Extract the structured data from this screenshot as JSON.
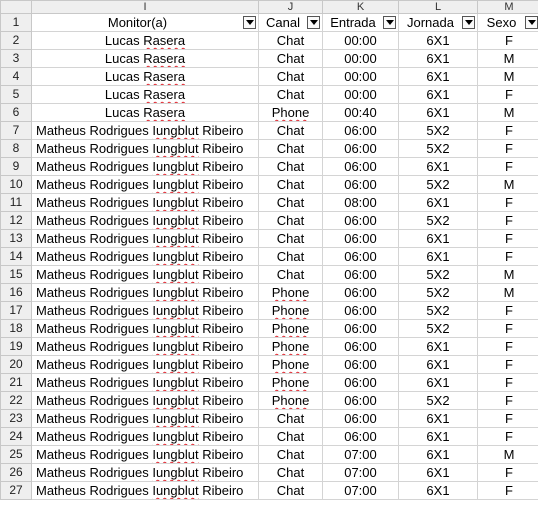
{
  "columns": [
    "I",
    "J",
    "K",
    "L",
    "M"
  ],
  "headers": {
    "row_number": "1",
    "monitor": "Monitor(a)",
    "canal": "Canal",
    "entrada": "Entrada",
    "jornada": "Jornada",
    "sexo": "Sexo"
  },
  "rows": [
    {
      "n": "2",
      "monitor": "Lucas Rasera",
      "canal": "Chat",
      "entrada": "00:00",
      "jornada": "6X1",
      "sexo": "F"
    },
    {
      "n": "3",
      "monitor": "Lucas Rasera",
      "canal": "Chat",
      "entrada": "00:00",
      "jornada": "6X1",
      "sexo": "M"
    },
    {
      "n": "4",
      "monitor": "Lucas Rasera",
      "canal": "Chat",
      "entrada": "00:00",
      "jornada": "6X1",
      "sexo": "M"
    },
    {
      "n": "5",
      "monitor": "Lucas Rasera",
      "canal": "Chat",
      "entrada": "00:00",
      "jornada": "6X1",
      "sexo": "F"
    },
    {
      "n": "6",
      "monitor": "Lucas Rasera",
      "canal": "Phone",
      "entrada": "00:40",
      "jornada": "6X1",
      "sexo": "M"
    },
    {
      "n": "7",
      "monitor": "Matheus Rodrigues Iungblut Ribeiro",
      "canal": "Chat",
      "entrada": "06:00",
      "jornada": "5X2",
      "sexo": "F"
    },
    {
      "n": "8",
      "monitor": "Matheus Rodrigues Iungblut Ribeiro",
      "canal": "Chat",
      "entrada": "06:00",
      "jornada": "5X2",
      "sexo": "F"
    },
    {
      "n": "9",
      "monitor": "Matheus Rodrigues Iungblut Ribeiro",
      "canal": "Chat",
      "entrada": "06:00",
      "jornada": "6X1",
      "sexo": "F"
    },
    {
      "n": "10",
      "monitor": "Matheus Rodrigues Iungblut Ribeiro",
      "canal": "Chat",
      "entrada": "06:00",
      "jornada": "5X2",
      "sexo": "M"
    },
    {
      "n": "11",
      "monitor": "Matheus Rodrigues Iungblut Ribeiro",
      "canal": "Chat",
      "entrada": "08:00",
      "jornada": "6X1",
      "sexo": "F"
    },
    {
      "n": "12",
      "monitor": "Matheus Rodrigues Iungblut Ribeiro",
      "canal": "Chat",
      "entrada": "06:00",
      "jornada": "5X2",
      "sexo": "F"
    },
    {
      "n": "13",
      "monitor": "Matheus Rodrigues Iungblut Ribeiro",
      "canal": "Chat",
      "entrada": "06:00",
      "jornada": "6X1",
      "sexo": "F"
    },
    {
      "n": "14",
      "monitor": "Matheus Rodrigues Iungblut Ribeiro",
      "canal": "Chat",
      "entrada": "06:00",
      "jornada": "6X1",
      "sexo": "F"
    },
    {
      "n": "15",
      "monitor": "Matheus Rodrigues Iungblut Ribeiro",
      "canal": "Chat",
      "entrada": "06:00",
      "jornada": "5X2",
      "sexo": "M"
    },
    {
      "n": "16",
      "monitor": "Matheus Rodrigues Iungblut Ribeiro",
      "canal": "Phone",
      "entrada": "06:00",
      "jornada": "5X2",
      "sexo": "M"
    },
    {
      "n": "17",
      "monitor": "Matheus Rodrigues Iungblut Ribeiro",
      "canal": "Phone",
      "entrada": "06:00",
      "jornada": "5X2",
      "sexo": "F"
    },
    {
      "n": "18",
      "monitor": "Matheus Rodrigues Iungblut Ribeiro",
      "canal": "Phone",
      "entrada": "06:00",
      "jornada": "5X2",
      "sexo": "F"
    },
    {
      "n": "19",
      "monitor": "Matheus Rodrigues Iungblut Ribeiro",
      "canal": "Phone",
      "entrada": "06:00",
      "jornada": "6X1",
      "sexo": "F"
    },
    {
      "n": "20",
      "monitor": "Matheus Rodrigues Iungblut Ribeiro",
      "canal": "Phone",
      "entrada": "06:00",
      "jornada": "6X1",
      "sexo": "F"
    },
    {
      "n": "21",
      "monitor": "Matheus Rodrigues Iungblut Ribeiro",
      "canal": "Phone",
      "entrada": "06:00",
      "jornada": "6X1",
      "sexo": "F"
    },
    {
      "n": "22",
      "monitor": "Matheus Rodrigues Iungblut Ribeiro",
      "canal": "Phone",
      "entrada": "06:00",
      "jornada": "5X2",
      "sexo": "F"
    },
    {
      "n": "23",
      "monitor": "Matheus Rodrigues Iungblut Ribeiro",
      "canal": "Chat",
      "entrada": "06:00",
      "jornada": "6X1",
      "sexo": "F"
    },
    {
      "n": "24",
      "monitor": "Matheus Rodrigues Iungblut Ribeiro",
      "canal": "Chat",
      "entrada": "06:00",
      "jornada": "6X1",
      "sexo": "F"
    },
    {
      "n": "25",
      "monitor": "Matheus Rodrigues Iungblut Ribeiro",
      "canal": "Chat",
      "entrada": "07:00",
      "jornada": "6X1",
      "sexo": "M"
    },
    {
      "n": "26",
      "monitor": "Matheus Rodrigues Iungblut Ribeiro",
      "canal": "Chat",
      "entrada": "07:00",
      "jornada": "6X1",
      "sexo": "F"
    },
    {
      "n": "27",
      "monitor": "Matheus Rodrigues Iungblut Ribeiro",
      "canal": "Chat",
      "entrada": "07:00",
      "jornada": "6X1",
      "sexo": "F"
    }
  ]
}
